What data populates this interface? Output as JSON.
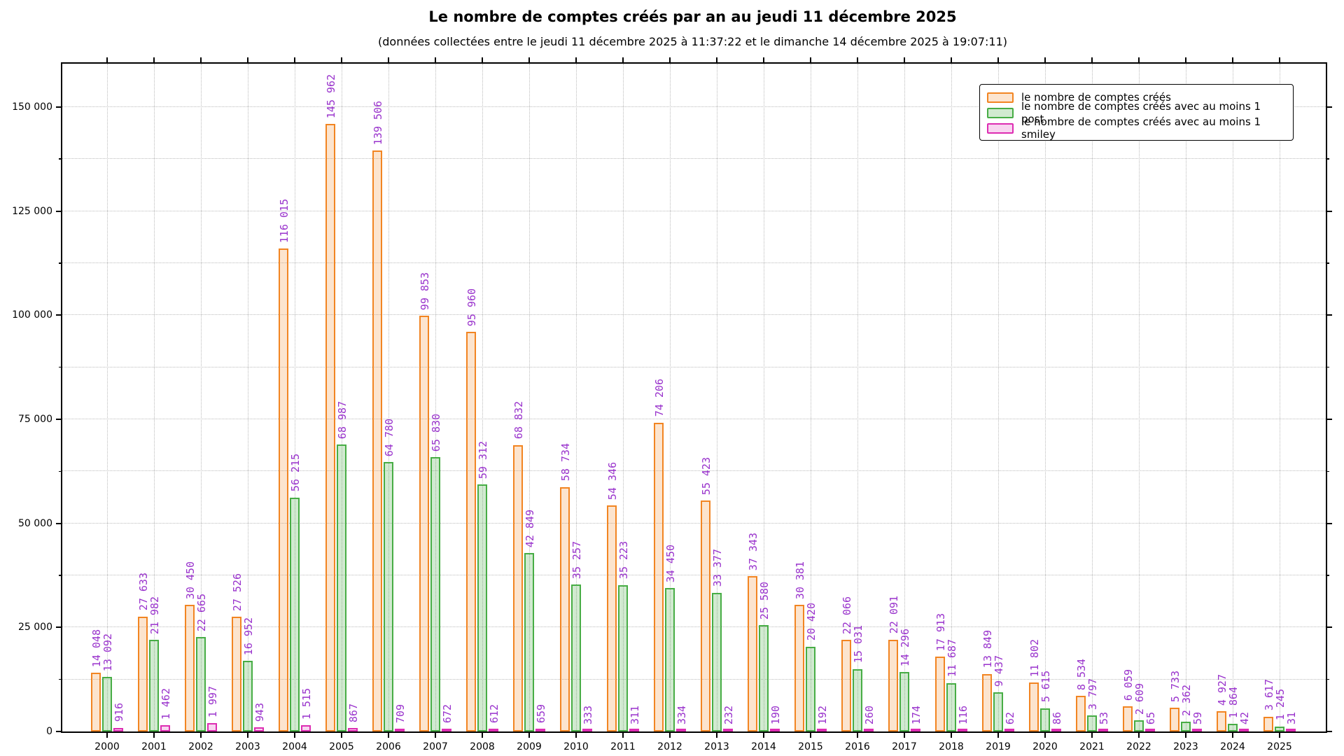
{
  "title": "Le nombre de comptes créés par an au jeudi 11 décembre 2025",
  "subtitle": "(données collectées entre le jeudi 11 décembre 2025 à 11:37:22 et le dimanche 14 décembre 2025 à 19:07:11)",
  "chart_data": {
    "type": "bar",
    "title": "Le nombre de comptes créés par an au jeudi 11 décembre 2025",
    "subtitle": "(données collectées entre le jeudi 11 décembre 2025 à 11:37:22 et le dimanche 14 décembre 2025 à 19:07:11)",
    "xlabel": "",
    "ylabel": "",
    "categories": [
      "2000",
      "2001",
      "2002",
      "2003",
      "2004",
      "2005",
      "2006",
      "2007",
      "2008",
      "2009",
      "2010",
      "2011",
      "2012",
      "2013",
      "2014",
      "2015",
      "2016",
      "2017",
      "2018",
      "2019",
      "2020",
      "2021",
      "2022",
      "2023",
      "2024",
      "2025"
    ],
    "series": [
      {
        "key": "created",
        "name": "le nombre de comptes créés",
        "edge_color": "#f28522",
        "fill_color": "rgba(242,133,34,0.22)",
        "values": [
          14048,
          27633,
          30450,
          27526,
          116015,
          145962,
          139506,
          99853,
          95960,
          68832,
          58734,
          54346,
          74206,
          55423,
          37343,
          30381,
          22066,
          22091,
          17913,
          13849,
          11802,
          8534,
          6059,
          5733,
          4927,
          3617
        ]
      },
      {
        "key": "post",
        "name": "le nombre de comptes créés avec au moins 1 post",
        "edge_color": "#47ad45",
        "fill_color": "rgba(71,173,69,0.25)",
        "values": [
          13092,
          21982,
          22665,
          16952,
          56215,
          68987,
          64780,
          65830,
          59312,
          42849,
          35257,
          35223,
          34450,
          33377,
          25580,
          20420,
          15031,
          14296,
          11687,
          9437,
          5615,
          3797,
          2609,
          2362,
          1864,
          1245
        ]
      },
      {
        "key": "smiley",
        "name": "le nombre de comptes créés avec au moins 1 smiley",
        "edge_color": "#dd2db2",
        "fill_color": "rgba(221,45,178,0.2)",
        "values": [
          916,
          1462,
          1997,
          943,
          1515,
          867,
          709,
          672,
          612,
          659,
          333,
          311,
          334,
          232,
          190,
          192,
          260,
          174,
          116,
          62,
          86,
          53,
          65,
          59,
          42,
          31
        ]
      }
    ],
    "ylim": [
      0,
      160400
    ],
    "ytick_step": 25000,
    "yticks_max": 150000,
    "grid_step": 12500,
    "y_tick_labels": [
      "0",
      "25 000",
      "50 000",
      "75 000",
      "100 000",
      "125 000",
      "150 000"
    ],
    "grid": true,
    "legend_position": "top-right",
    "value_label_color": "#9932cc"
  }
}
